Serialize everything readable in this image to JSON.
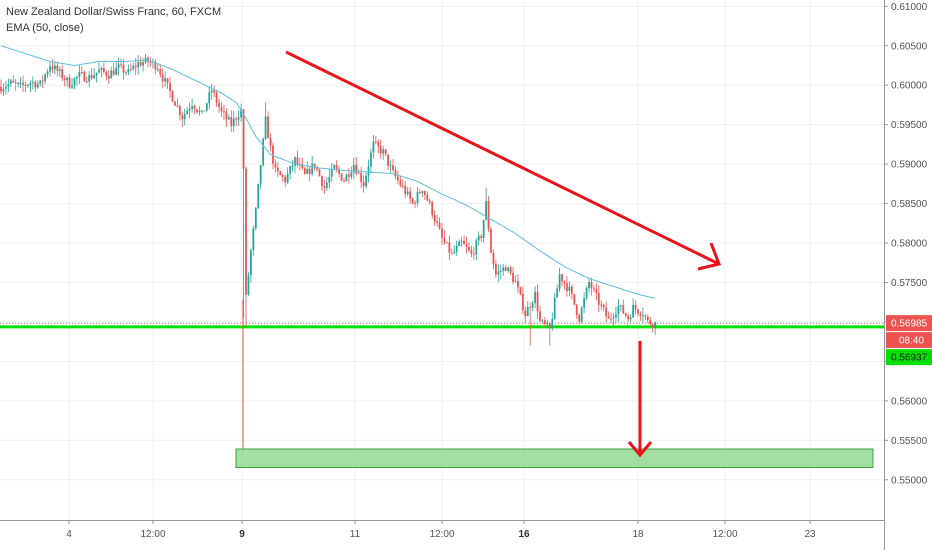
{
  "legend": {
    "symbol": "New Zealand Dollar/Swiss Franc, 60, FXCM",
    "indicator": "EMA (50, close)"
  },
  "colors": {
    "bull": "#26a69a",
    "bear": "#ef5350",
    "ema": "#5bc0de",
    "support": "#00e000",
    "arrow": "#e8141a",
    "target_zone": "#7cd17c",
    "price_badge": "#ef5350",
    "support_badge": "#00e000"
  },
  "price_badges": {
    "last_price": "0.56985",
    "countdown": "08:40",
    "support_price": "0.56937"
  },
  "chart_data": {
    "type": "candlestick",
    "y_axis": {
      "range": [
        0.5449,
        0.6108
      ],
      "ticks": [
        "0.61000",
        "0.60500",
        "0.60000",
        "0.59500",
        "0.59000",
        "0.58500",
        "0.58000",
        "0.57500",
        "0.57000",
        "0.56500",
        "0.56000",
        "0.55500",
        "0.55000"
      ]
    },
    "x_axis": {
      "ticks": [
        {
          "label": "4",
          "bold": false
        },
        {
          "label": "12:00",
          "bold": false
        },
        {
          "label": "9",
          "bold": true
        },
        {
          "label": "11",
          "bold": false
        },
        {
          "label": "12:00",
          "bold": false
        },
        {
          "label": "16",
          "bold": true
        },
        {
          "label": "18",
          "bold": false
        },
        {
          "label": "12:00",
          "bold": false
        },
        {
          "label": "23",
          "bold": false
        }
      ]
    },
    "ohlc_anchors": [
      [
        0,
        0.5998
      ],
      [
        4,
        0.6002
      ],
      [
        8,
        0.5998
      ],
      [
        12,
        0.6004
      ],
      [
        16,
        0.6001
      ],
      [
        20,
        0.6026
      ],
      [
        24,
        0.6015
      ],
      [
        28,
        0.6002
      ],
      [
        32,
        0.6012
      ],
      [
        36,
        0.601
      ],
      [
        40,
        0.6018
      ],
      [
        44,
        0.6014
      ],
      [
        48,
        0.6022
      ],
      [
        52,
        0.6016
      ],
      [
        56,
        0.6028
      ],
      [
        60,
        0.603
      ],
      [
        64,
        0.6024
      ],
      [
        66,
        0.601
      ],
      [
        70,
        0.5985
      ],
      [
        74,
        0.596
      ],
      [
        78,
        0.5978
      ],
      [
        82,
        0.5962
      ],
      [
        86,
        0.5994
      ],
      [
        90,
        0.5965
      ],
      [
        94,
        0.595
      ],
      [
        96,
        0.596
      ],
      [
        98,
        0.5968
      ],
      [
        99,
        0.5895
      ],
      [
        100,
        0.573
      ],
      [
        102,
        0.579
      ],
      [
        104,
        0.584
      ],
      [
        106,
        0.59
      ],
      [
        108,
        0.5955
      ],
      [
        110,
        0.592
      ],
      [
        112,
        0.589
      ],
      [
        116,
        0.588
      ],
      [
        120,
        0.5905
      ],
      [
        124,
        0.5885
      ],
      [
        128,
        0.59
      ],
      [
        132,
        0.587
      ],
      [
        136,
        0.5895
      ],
      [
        140,
        0.588
      ],
      [
        144,
        0.59
      ],
      [
        148,
        0.5875
      ],
      [
        152,
        0.5925
      ],
      [
        156,
        0.5915
      ],
      [
        160,
        0.5888
      ],
      [
        164,
        0.587
      ],
      [
        168,
        0.585
      ],
      [
        172,
        0.587
      ],
      [
        176,
        0.584
      ],
      [
        180,
        0.5805
      ],
      [
        184,
        0.5785
      ],
      [
        188,
        0.58
      ],
      [
        192,
        0.5785
      ],
      [
        196,
        0.581
      ],
      [
        198,
        0.585
      ],
      [
        200,
        0.579
      ],
      [
        202,
        0.576
      ],
      [
        206,
        0.577
      ],
      [
        210,
        0.575
      ],
      [
        214,
        0.571
      ],
      [
        218,
        0.5735
      ],
      [
        220,
        0.57
      ],
      [
        224,
        0.569
      ],
      [
        228,
        0.576
      ],
      [
        232,
        0.574
      ],
      [
        236,
        0.5705
      ],
      [
        240,
        0.575
      ],
      [
        244,
        0.5725
      ],
      [
        248,
        0.5702
      ],
      [
        252,
        0.572
      ],
      [
        256,
        0.5705
      ],
      [
        258,
        0.5718
      ],
      [
        262,
        0.5712
      ],
      [
        264,
        0.57
      ],
      [
        267,
        0.5698
      ]
    ],
    "ema_anchors": [
      [
        0,
        0.605
      ],
      [
        10,
        0.604
      ],
      [
        20,
        0.603
      ],
      [
        30,
        0.6025
      ],
      [
        40,
        0.603
      ],
      [
        50,
        0.603
      ],
      [
        60,
        0.6032
      ],
      [
        70,
        0.602
      ],
      [
        80,
        0.6005
      ],
      [
        90,
        0.599
      ],
      [
        96,
        0.5978
      ],
      [
        100,
        0.5958
      ],
      [
        104,
        0.5935
      ],
      [
        110,
        0.5912
      ],
      [
        120,
        0.59
      ],
      [
        130,
        0.5895
      ],
      [
        140,
        0.5892
      ],
      [
        150,
        0.589
      ],
      [
        160,
        0.5888
      ],
      [
        170,
        0.5878
      ],
      [
        180,
        0.5862
      ],
      [
        190,
        0.5848
      ],
      [
        200,
        0.583
      ],
      [
        210,
        0.5812
      ],
      [
        220,
        0.579
      ],
      [
        230,
        0.577
      ],
      [
        240,
        0.5755
      ],
      [
        250,
        0.5745
      ],
      [
        260,
        0.5735
      ],
      [
        267,
        0.573
      ]
    ],
    "support_level": 0.56937,
    "last_price_level": 0.56985,
    "target_zone": {
      "from": 0.55155,
      "to": 0.5539
    }
  }
}
